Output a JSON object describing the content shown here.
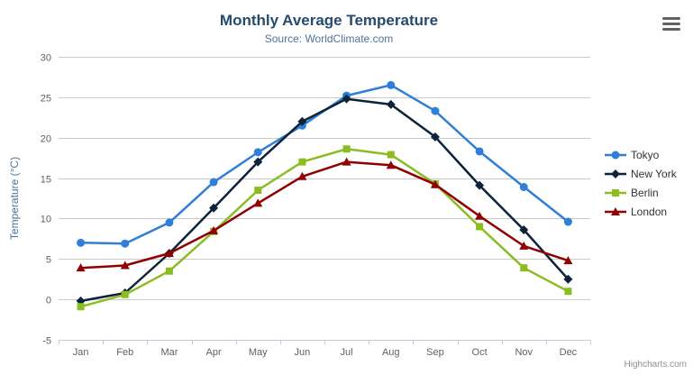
{
  "chart": {
    "credits_label": "Highcharts.com",
    "export_menu_tooltip": "hamburger-menu-icon"
  },
  "colors": {
    "title": "#274b6d",
    "subtitle": "#4d759e",
    "axis_title": "#4d759e",
    "tick_label": "#606060",
    "grid_line": "#c9c9c9",
    "axis_line": "#c0d0e0",
    "legend_text": "#333333",
    "credits": "#909090",
    "menu_icon": "#616161"
  },
  "chart_data": {
    "type": "line",
    "title": "Monthly Average Temperature",
    "subtitle": "Source: WorldClimate.com",
    "xlabel": "",
    "ylabel": "Temperature (°C)",
    "ylim": [
      -5,
      30
    ],
    "ytick_interval": 5,
    "grid": "horizontal",
    "legend_position": "right",
    "categories": [
      "Jan",
      "Feb",
      "Mar",
      "Apr",
      "May",
      "Jun",
      "Jul",
      "Aug",
      "Sep",
      "Oct",
      "Nov",
      "Dec"
    ],
    "series": [
      {
        "name": "Tokyo",
        "color": "#2f7ed8",
        "marker": "circle",
        "values": [
          7.0,
          6.9,
          9.5,
          14.5,
          18.2,
          21.5,
          25.2,
          26.5,
          23.3,
          18.3,
          13.9,
          9.6
        ]
      },
      {
        "name": "New York",
        "color": "#0d233a",
        "marker": "diamond",
        "values": [
          -0.2,
          0.8,
          5.7,
          11.3,
          17.0,
          22.0,
          24.8,
          24.1,
          20.1,
          14.1,
          8.6,
          2.5
        ]
      },
      {
        "name": "Berlin",
        "color": "#8bbc21",
        "marker": "square",
        "values": [
          -0.9,
          0.6,
          3.5,
          8.4,
          13.5,
          17.0,
          18.6,
          17.9,
          14.3,
          9.0,
          3.9,
          1.0
        ]
      },
      {
        "name": "London",
        "color": "#910000",
        "marker": "triangle",
        "values": [
          3.9,
          4.2,
          5.7,
          8.5,
          11.9,
          15.2,
          17.0,
          16.6,
          14.2,
          10.3,
          6.6,
          4.8
        ]
      }
    ]
  }
}
